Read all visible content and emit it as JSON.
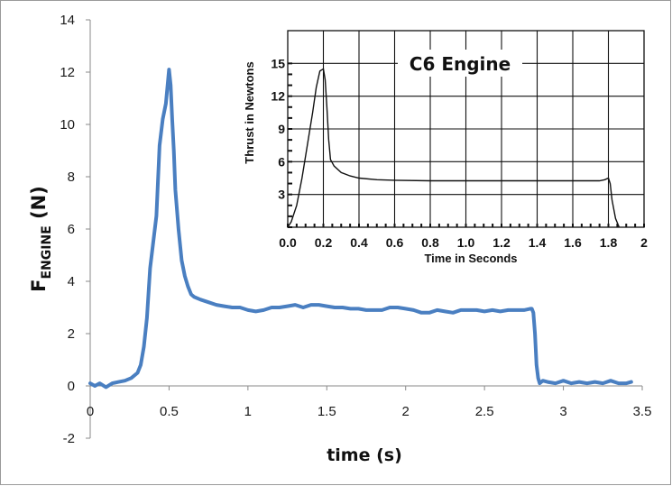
{
  "chart_data": [
    {
      "type": "line",
      "xlabel": "time (s)",
      "ylabel_main": "F",
      "ylabel_sub": "ENGINE",
      "ylabel_unit": " (N)",
      "xlim": [
        0,
        3.5
      ],
      "ylim": [
        -2,
        14
      ],
      "xticks": [
        "0",
        "0.5",
        "1",
        "1.5",
        "2",
        "2.5",
        "3",
        "3.5"
      ],
      "xtick_values": [
        0,
        0.5,
        1,
        1.5,
        2,
        2.5,
        3,
        3.5
      ],
      "yticks": [
        "-2",
        "0",
        "2",
        "4",
        "6",
        "8",
        "10",
        "12",
        "14"
      ],
      "ytick_values": [
        -2,
        0,
        2,
        4,
        6,
        8,
        10,
        12,
        14
      ],
      "grid": false,
      "line_color": "#4a7fc1",
      "series": [
        {
          "x": [
            0,
            0.03,
            0.06,
            0.1,
            0.14,
            0.18,
            0.22,
            0.26,
            0.3,
            0.32,
            0.34,
            0.36,
            0.38,
            0.4,
            0.42,
            0.44,
            0.46,
            0.48,
            0.5,
            0.51,
            0.52,
            0.53,
            0.54,
            0.56,
            0.58,
            0.6,
            0.62,
            0.64,
            0.66,
            0.7,
            0.75,
            0.8,
            0.85,
            0.9,
            0.95,
            1.0,
            1.05,
            1.1,
            1.15,
            1.2,
            1.25,
            1.3,
            1.35,
            1.4,
            1.45,
            1.5,
            1.55,
            1.6,
            1.65,
            1.7,
            1.75,
            1.8,
            1.85,
            1.9,
            1.95,
            2.0,
            2.05,
            2.1,
            2.15,
            2.2,
            2.25,
            2.3,
            2.35,
            2.4,
            2.45,
            2.5,
            2.55,
            2.6,
            2.65,
            2.7,
            2.75,
            2.79,
            2.8,
            2.81,
            2.82,
            2.83,
            2.84,
            2.85,
            2.87,
            2.9,
            2.95,
            3.0,
            3.05,
            3.1,
            3.15,
            3.2,
            3.25,
            3.3,
            3.35,
            3.4,
            3.43
          ],
          "y": [
            0.1,
            0.0,
            0.1,
            -0.05,
            0.1,
            0.15,
            0.2,
            0.3,
            0.5,
            0.8,
            1.5,
            2.6,
            4.5,
            5.5,
            6.5,
            9.2,
            10.2,
            10.8,
            12.1,
            11.5,
            10.2,
            9.0,
            7.5,
            6.0,
            4.8,
            4.2,
            3.8,
            3.5,
            3.4,
            3.3,
            3.2,
            3.1,
            3.05,
            3.0,
            3.0,
            2.9,
            2.85,
            2.9,
            3.0,
            3.0,
            3.05,
            3.1,
            3.0,
            3.1,
            3.1,
            3.05,
            3.0,
            3.0,
            2.95,
            2.95,
            2.9,
            2.9,
            2.9,
            3.0,
            3.0,
            2.95,
            2.9,
            2.8,
            2.8,
            2.9,
            2.85,
            2.8,
            2.9,
            2.9,
            2.9,
            2.85,
            2.9,
            2.85,
            2.9,
            2.9,
            2.9,
            2.95,
            2.95,
            2.8,
            2.0,
            0.8,
            0.3,
            0.1,
            0.2,
            0.15,
            0.1,
            0.2,
            0.1,
            0.15,
            0.1,
            0.15,
            0.1,
            0.2,
            0.1,
            0.1,
            0.15
          ]
        }
      ]
    },
    {
      "type": "line",
      "title": "C6 Engine",
      "xlabel": "Time in Seconds",
      "ylabel": "Thrust in Newtons",
      "xlim": [
        0,
        2
      ],
      "ylim": [
        0,
        18
      ],
      "xticks": [
        "0.0",
        "0.2",
        "0.4",
        "0.6",
        "0.8",
        "1.0",
        "1.2",
        "1.4",
        "1.6",
        "1.8",
        "2"
      ],
      "xtick_values": [
        0,
        0.2,
        0.4,
        0.6,
        0.8,
        1.0,
        1.2,
        1.4,
        1.6,
        1.8,
        2.0
      ],
      "yticks": [
        "3",
        "6",
        "9",
        "12",
        "15"
      ],
      "ytick_values": [
        3,
        6,
        9,
        12,
        15
      ],
      "grid": true,
      "series": [
        {
          "x": [
            0,
            0.02,
            0.05,
            0.08,
            0.11,
            0.14,
            0.16,
            0.18,
            0.2,
            0.21,
            0.22,
            0.23,
            0.24,
            0.26,
            0.3,
            0.35,
            0.4,
            0.5,
            0.6,
            0.8,
            1.0,
            1.2,
            1.4,
            1.6,
            1.75,
            1.78,
            1.8,
            1.81,
            1.82,
            1.84,
            1.86
          ],
          "y": [
            0,
            0.5,
            2.0,
            4.5,
            7.5,
            10.5,
            12.8,
            14.3,
            14.5,
            13.5,
            11.0,
            8.0,
            6.2,
            5.6,
            5.0,
            4.7,
            4.5,
            4.35,
            4.3,
            4.25,
            4.25,
            4.25,
            4.25,
            4.25,
            4.25,
            4.35,
            4.5,
            4.0,
            2.5,
            0.8,
            0
          ]
        }
      ]
    }
  ]
}
